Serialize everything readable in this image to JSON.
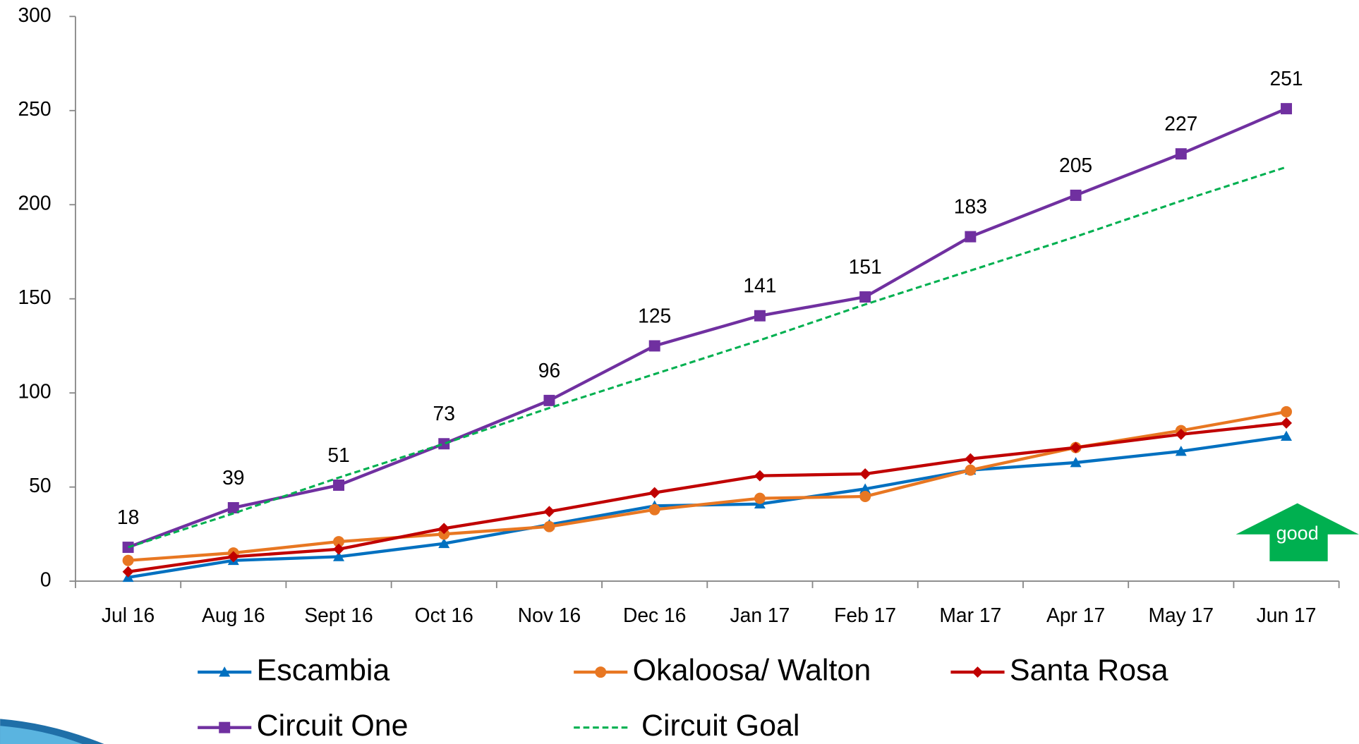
{
  "chart_data": {
    "type": "line",
    "categories": [
      "Jul 16",
      "Aug 16",
      "Sept 16",
      "Oct 16",
      "Nov 16",
      "Dec 16",
      "Jan 17",
      "Feb 17",
      "Mar 17",
      "Apr 17",
      "May 17",
      "Jun 17"
    ],
    "ylim": [
      0,
      300
    ],
    "yticks": [
      0,
      50,
      100,
      150,
      200,
      250,
      300
    ],
    "annotation": "good",
    "series": [
      {
        "name": "Escambia",
        "color": "#0070c0",
        "marker": "triangle",
        "values": [
          2,
          11,
          13,
          20,
          30,
          40,
          41,
          49,
          59,
          63,
          69,
          77
        ]
      },
      {
        "name": "Okaloosa/ Walton",
        "color": "#e87722",
        "marker": "circle",
        "values": [
          11,
          15,
          21,
          25,
          29,
          38,
          44,
          45,
          59,
          71,
          80,
          90
        ]
      },
      {
        "name": "Santa Rosa",
        "color": "#c00000",
        "marker": "diamond",
        "values": [
          5,
          13,
          17,
          28,
          37,
          47,
          56,
          57,
          65,
          71,
          78,
          84
        ]
      },
      {
        "name": "Circuit One",
        "color": "#7030a0",
        "marker": "square",
        "show_values": true,
        "values": [
          18,
          39,
          51,
          73,
          96,
          125,
          141,
          151,
          183,
          205,
          227,
          251
        ]
      },
      {
        "name": "Circuit Goal",
        "color": "#00b050",
        "dashed": true,
        "values": [
          18,
          36,
          55,
          73,
          92,
          110,
          128,
          147,
          165,
          183,
          202,
          220
        ]
      }
    ]
  }
}
